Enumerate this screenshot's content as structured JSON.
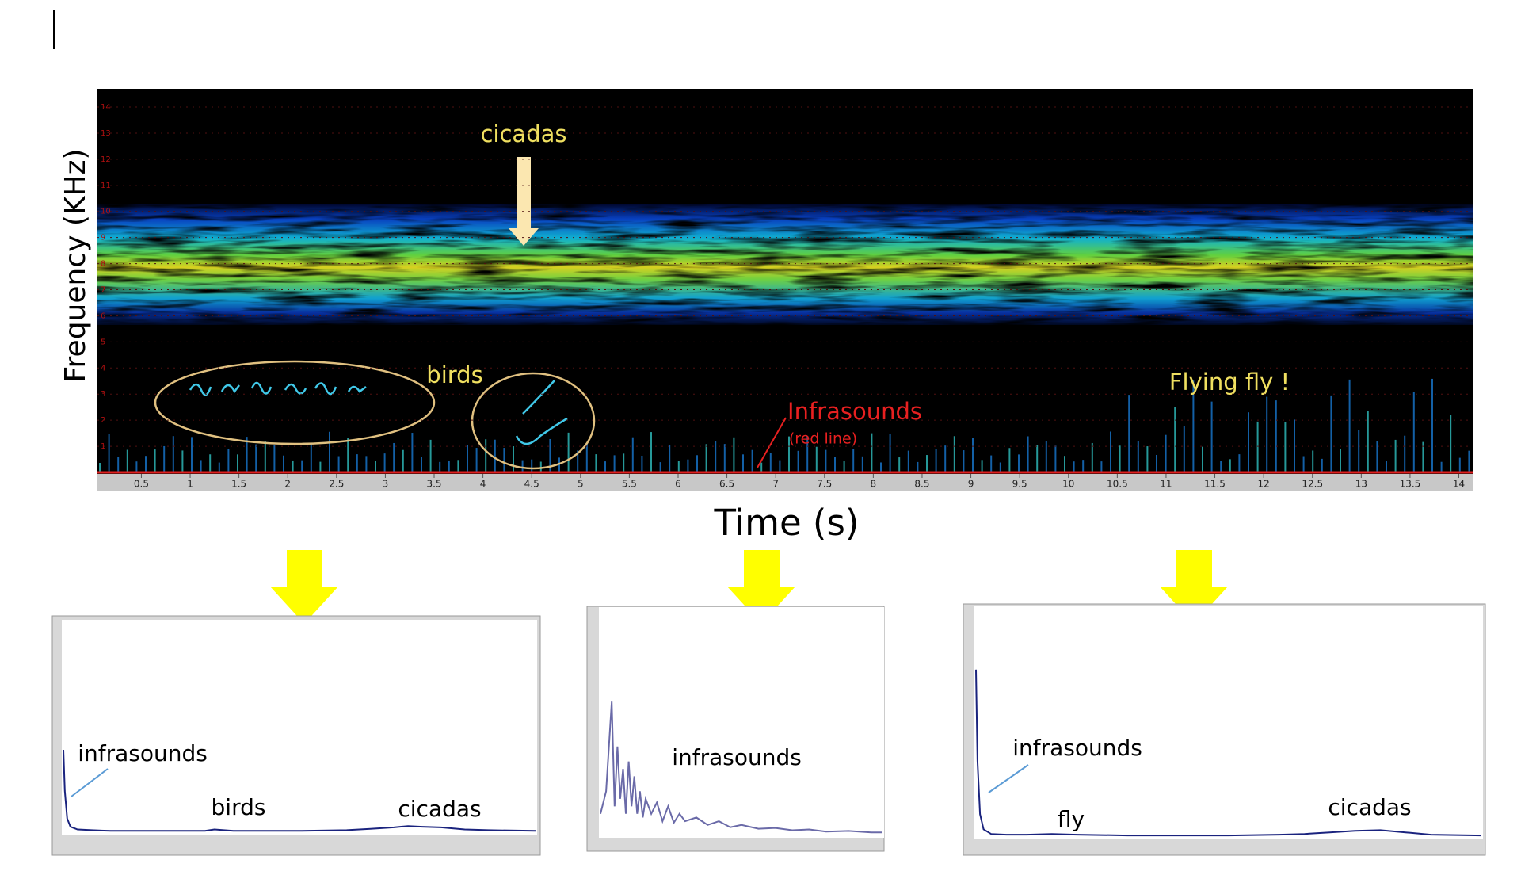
{
  "chart_data": [
    {
      "type": "spectrogram",
      "y_label": "Frequency (KHz)",
      "x_label": "Time (s)",
      "annotations": [
        "cicadas",
        "birds",
        "Infrasounds",
        "(red line)",
        "Flying fly !"
      ],
      "xlim": [
        0.05,
        14.15
      ],
      "ylim": [
        0,
        14.7
      ],
      "xticks": [
        0.5,
        1,
        1.5,
        2,
        2.5,
        3,
        3.5,
        4,
        4.5,
        5,
        5.5,
        6,
        6.5,
        7,
        7.5,
        8,
        8.5,
        9,
        9.5,
        10,
        10.5,
        11,
        11.5,
        12,
        12.5,
        13,
        13.5,
        14
      ],
      "yticks": [
        1,
        2,
        3,
        4,
        5,
        6,
        7,
        8,
        9,
        10,
        11,
        12,
        13,
        14
      ],
      "grid": true
    },
    {
      "type": "line",
      "annotations": [
        "infrasounds",
        "birds",
        "cicadas"
      ],
      "color": "#1a237e",
      "x": [
        0,
        0.03,
        0.08,
        0.15,
        0.3,
        0.6,
        1,
        2,
        3,
        3.2,
        3.4,
        3.6,
        4,
        5,
        6,
        6.5,
        7,
        7.3,
        7.6,
        8,
        8.5,
        9,
        10
      ],
      "values": [
        12,
        6,
        2,
        0.8,
        0.4,
        0.3,
        0.2,
        0.2,
        0.2,
        0.4,
        0.3,
        0.2,
        0.2,
        0.2,
        0.3,
        0.5,
        0.7,
        0.9,
        0.8,
        0.7,
        0.4,
        0.3,
        0.2
      ],
      "xlim": [
        0,
        10
      ],
      "ylim": [
        0,
        30
      ]
    },
    {
      "type": "line",
      "annotations": [
        "infrasounds"
      ],
      "color": "#6a6aa8",
      "x": [
        0,
        1,
        2,
        2.5,
        3,
        3.5,
        4,
        4.5,
        5,
        5.5,
        6,
        6.5,
        7,
        7.5,
        8,
        9,
        10,
        11,
        12,
        13,
        14,
        15,
        17,
        19,
        21,
        23,
        25,
        28,
        31,
        34,
        37,
        40,
        44,
        48,
        50
      ],
      "values": [
        3,
        6,
        18,
        4,
        12,
        5,
        9,
        3,
        10,
        4,
        8,
        3,
        6,
        2.5,
        5,
        3,
        4.5,
        2,
        4,
        1.8,
        3,
        2,
        2.5,
        1.5,
        2,
        1.2,
        1.5,
        1,
        1.1,
        0.8,
        0.9,
        0.6,
        0.7,
        0.5,
        0.5
      ],
      "xlim": [
        0,
        50
      ],
      "ylim": [
        0,
        30
      ]
    },
    {
      "type": "line",
      "annotations": [
        "infrasounds",
        "fly",
        "cicadas"
      ],
      "color": "#1a237e",
      "x": [
        0,
        0.03,
        0.08,
        0.15,
        0.3,
        0.6,
        1,
        1.5,
        2,
        3,
        4,
        5,
        6,
        6.5,
        7,
        7.5,
        8,
        8.5,
        9,
        10
      ],
      "values": [
        22,
        10,
        3,
        1,
        0.4,
        0.3,
        0.3,
        0.4,
        0.3,
        0.2,
        0.2,
        0.2,
        0.3,
        0.4,
        0.6,
        0.8,
        0.9,
        0.6,
        0.3,
        0.2
      ],
      "xlim": [
        0,
        10
      ],
      "ylim": [
        0,
        30
      ]
    }
  ]
}
